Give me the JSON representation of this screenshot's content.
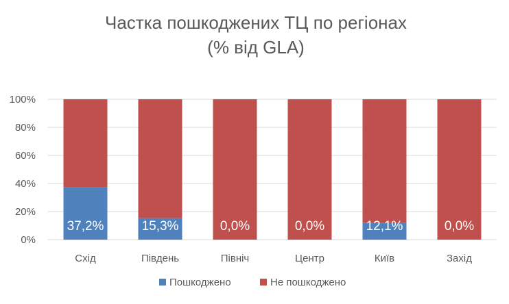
{
  "chart_data": {
    "type": "bar",
    "stacked": true,
    "title": "Частка пошкоджених ТЦ по регіонах",
    "subtitle": "(% від GLA)",
    "categories": [
      "Схід",
      "Південь",
      "Північ",
      "Центр",
      "Київ",
      "Захід"
    ],
    "series": [
      {
        "name": "Пошкоджено",
        "color": "#4F81BD",
        "values": [
          37.2,
          15.3,
          0.0,
          0.0,
          12.1,
          0.0
        ],
        "labels": [
          "37,2%",
          "15,3%",
          "0,0%",
          "0,0%",
          "12,1%",
          "0,0%"
        ]
      },
      {
        "name": "Не пошкоджено",
        "color": "#C0504D",
        "values": [
          62.8,
          84.7,
          100.0,
          100.0,
          87.9,
          100.0
        ]
      }
    ],
    "ylim": [
      0,
      100
    ],
    "yticks": [
      "0%",
      "20%",
      "40%",
      "60%",
      "80%",
      "100%"
    ],
    "grid": true,
    "legend_position": "bottom"
  }
}
